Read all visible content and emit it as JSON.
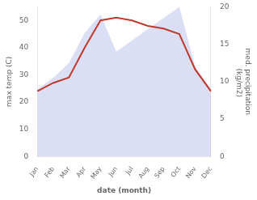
{
  "chart_data": {
    "type": "line",
    "xlabel": "date (month)",
    "ylabel": "max temp (C)",
    "y2label": "med. precipitation\n (kg/m2)",
    "categories": [
      "Jan",
      "Feb",
      "Mar",
      "Apr",
      "May",
      "Jun",
      "Jul",
      "Aug",
      "Sep",
      "Oct",
      "Nov",
      "Dec"
    ],
    "series": [
      {
        "type": "area",
        "axis": "y2",
        "color": "#b0b8e8",
        "values": [
          9.0,
          10.5,
          12.5,
          16.5,
          19.0,
          14.0,
          15.5,
          17.0,
          18.5,
          20.0,
          12.0,
          9.0
        ]
      },
      {
        "type": "line",
        "axis": "y",
        "color": "#c0392b",
        "values": [
          24,
          27,
          29,
          40,
          50,
          51,
          50,
          48,
          47,
          45,
          32,
          24
        ]
      }
    ],
    "ylim": [
      0,
      55
    ],
    "yticks": [
      0,
      10,
      20,
      30,
      40,
      50
    ],
    "y2lim": [
      0,
      20
    ],
    "y2ticks": [
      0,
      5,
      10,
      15,
      20
    ],
    "grid": false
  }
}
